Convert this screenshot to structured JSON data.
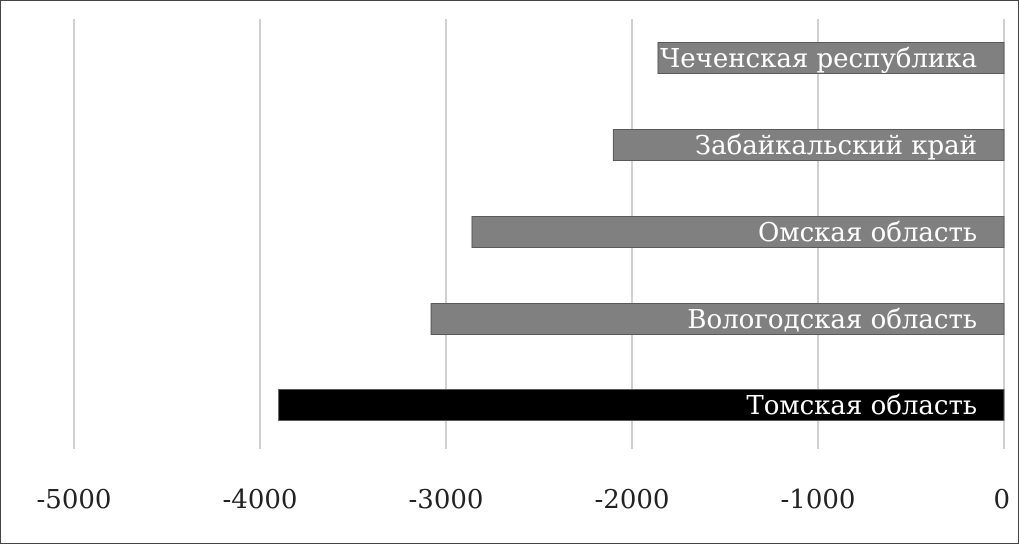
{
  "chart_data": {
    "type": "bar",
    "orientation": "horizontal",
    "categories": [
      "Чеченская республика",
      "Забайкальский край",
      "Омская область",
      "Вологодская область",
      "Томская область"
    ],
    "values": [
      -1860,
      -2100,
      -2860,
      -3080,
      -3900
    ],
    "xlim": [
      -5000,
      0
    ],
    "xticks": [
      -5000,
      -4000,
      -3000,
      -2000,
      -1000,
      0
    ],
    "grid": true,
    "colors": {
      "default_bar": "#808080",
      "highlight_bar": "#000000",
      "gridline": "#c0c0c0",
      "axis_text": "#222222",
      "bar_label": "#ffffff"
    },
    "highlight_category": "Томская область"
  }
}
